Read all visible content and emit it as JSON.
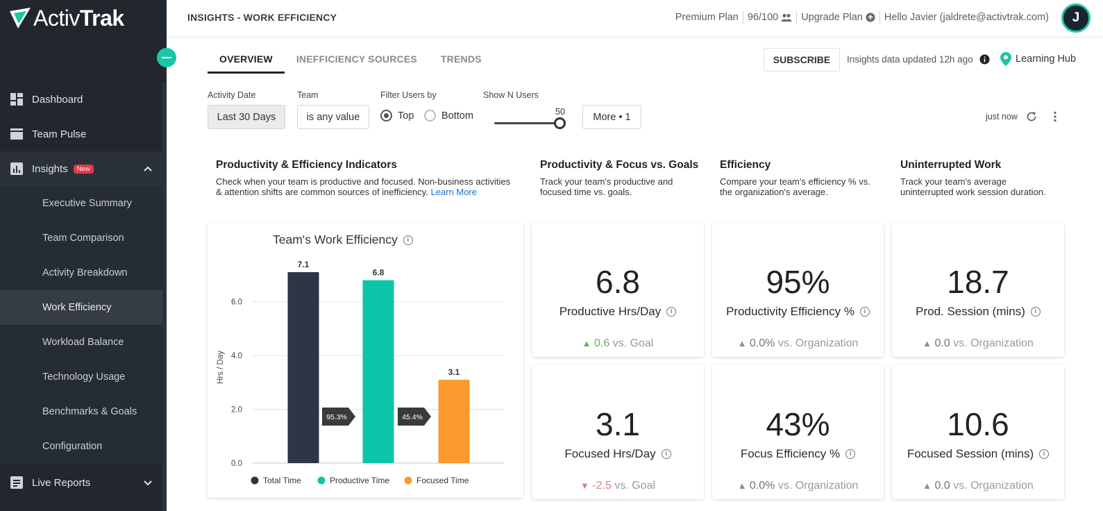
{
  "app": {
    "logo_text_a": "Activ",
    "logo_text_b": "Trak"
  },
  "sidebar": {
    "items": [
      {
        "label": "Dashboard",
        "icon": "dashboard-icon"
      },
      {
        "label": "Team Pulse",
        "icon": "team-pulse-icon"
      },
      {
        "label": "Insights",
        "icon": "insights-icon",
        "badge": "New"
      },
      {
        "label": "Live Reports",
        "icon": "live-reports-icon"
      }
    ],
    "insights_sub": [
      "Executive Summary",
      "Team Comparison",
      "Activity Breakdown",
      "Work Efficiency",
      "Workload Balance",
      "Technology Usage",
      "Benchmarks & Goals",
      "Configuration"
    ]
  },
  "header": {
    "title": "INSIGHTS - WORK EFFICIENCY",
    "plan": "Premium Plan",
    "seats": "96/100",
    "upgrade": "Upgrade Plan",
    "greeting": "Hello Javier (jaldrete@activtrak.com)",
    "avatar_initial": "J"
  },
  "tabs": [
    "OVERVIEW",
    "INEFFICIENCY SOURCES",
    "TRENDS"
  ],
  "toolbar": {
    "subscribe": "SUBSCRIBE",
    "updated": "Insights data updated 12h ago",
    "learning_hub": "Learning Hub"
  },
  "filters": {
    "activity_date_label": "Activity Date",
    "activity_date_value": "Last 30 Days",
    "team_label": "Team",
    "team_value": "is any value",
    "filter_users_label": "Filter Users by",
    "opt_top": "Top",
    "opt_bottom": "Bottom",
    "show_n_label": "Show N Users",
    "show_n_value": "50",
    "more": "More • 1",
    "refreshed": "just now"
  },
  "sections": {
    "indicators_title": "Productivity & Efficiency Indicators",
    "indicators_desc_1": "Check when your team is productive and focused. Non-business activities",
    "indicators_desc_2": "& attention shifts are common sources of inefficiency.",
    "learn_more": "Learn More",
    "goals_title": "Productivity & Focus vs. Goals",
    "goals_desc_1": "Track your team's productive and",
    "goals_desc_2": "focused time vs. goals.",
    "efficiency_title": "Efficiency",
    "efficiency_desc_1": "Compare your team's efficiency % vs.",
    "efficiency_desc_2": "the organization's average.",
    "uninterrupted_title": "Uninterrupted Work",
    "uninterrupted_desc_1": "Track your team's average",
    "uninterrupted_desc_2": "uninterrupted work session duration."
  },
  "kpis": [
    {
      "value": "6.8",
      "label": "Productive Hrs/Day",
      "delta": "0.6",
      "suffix": "vs. Goal",
      "trend": "up-green"
    },
    {
      "value": "95%",
      "label": "Productivity Efficiency %",
      "delta": "0.0%",
      "suffix": "vs. Organization",
      "trend": "neutral"
    },
    {
      "value": "18.7",
      "label": "Prod. Session (mins)",
      "delta": "0.0",
      "suffix": "vs. Organization",
      "trend": "neutral"
    },
    {
      "value": "3.1",
      "label": "Focused Hrs/Day",
      "delta": "-2.5",
      "suffix": "vs. Goal",
      "trend": "down-red"
    },
    {
      "value": "43%",
      "label": "Focus Efficiency %",
      "delta": "0.0%",
      "suffix": "vs. Organization",
      "trend": "neutral"
    },
    {
      "value": "10.6",
      "label": "Focused Session (mins)",
      "delta": "0.0",
      "suffix": "vs. Organization",
      "trend": "neutral"
    }
  ],
  "colors": {
    "accent": "#1bc6a7",
    "total": "#2f3446",
    "productive": "#0bc5a9",
    "focused": "#fd9a2e"
  },
  "chart_data": {
    "type": "bar",
    "title": "Team's Work Efficiency",
    "ylabel": "Hrs / Day",
    "ylim": [
      0,
      7.1
    ],
    "yticks": [
      "0.0",
      "2.0",
      "4.0",
      "6.0"
    ],
    "categories": [
      "Total Time",
      "Productive Time",
      "Focused Time"
    ],
    "values": [
      7.1,
      6.8,
      3.1
    ],
    "value_labels": [
      "7.1",
      "6.8",
      "3.1"
    ],
    "ratios": [
      "95.3%",
      "45.4%"
    ],
    "legend": [
      "Total Time",
      "Productive Time",
      "Focused Time"
    ],
    "legend_position": "bottom",
    "grid": true
  }
}
